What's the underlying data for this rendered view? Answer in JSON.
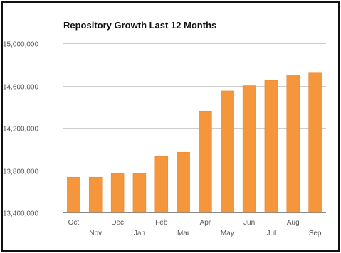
{
  "chart_data": {
    "type": "bar",
    "title": "Repository Growth Last 12 Months",
    "xlabel": "",
    "ylabel": "",
    "categories": [
      "Oct",
      "Nov",
      "Dec",
      "Jan",
      "Feb",
      "Mar",
      "Apr",
      "May",
      "Jun",
      "Jul",
      "Aug",
      "Sep"
    ],
    "values": [
      13735000,
      13735000,
      13770000,
      13770000,
      13930000,
      13970000,
      14360000,
      14550000,
      14600000,
      14650000,
      14700000,
      14720000
    ],
    "ylim": [
      13400000,
      15000000
    ],
    "yticks": [
      13400000,
      13800000,
      14200000,
      14600000,
      15000000
    ],
    "ytick_labels": [
      "13,400,000",
      "13,800,000",
      "14,200,000",
      "14,600,000",
      "15,000,000"
    ],
    "grid": true,
    "legend": "none",
    "colors": {
      "bar": "#f5963c",
      "bar_edge": "#e8832a",
      "grid": "#cccccc",
      "axis": "#888888"
    }
  }
}
